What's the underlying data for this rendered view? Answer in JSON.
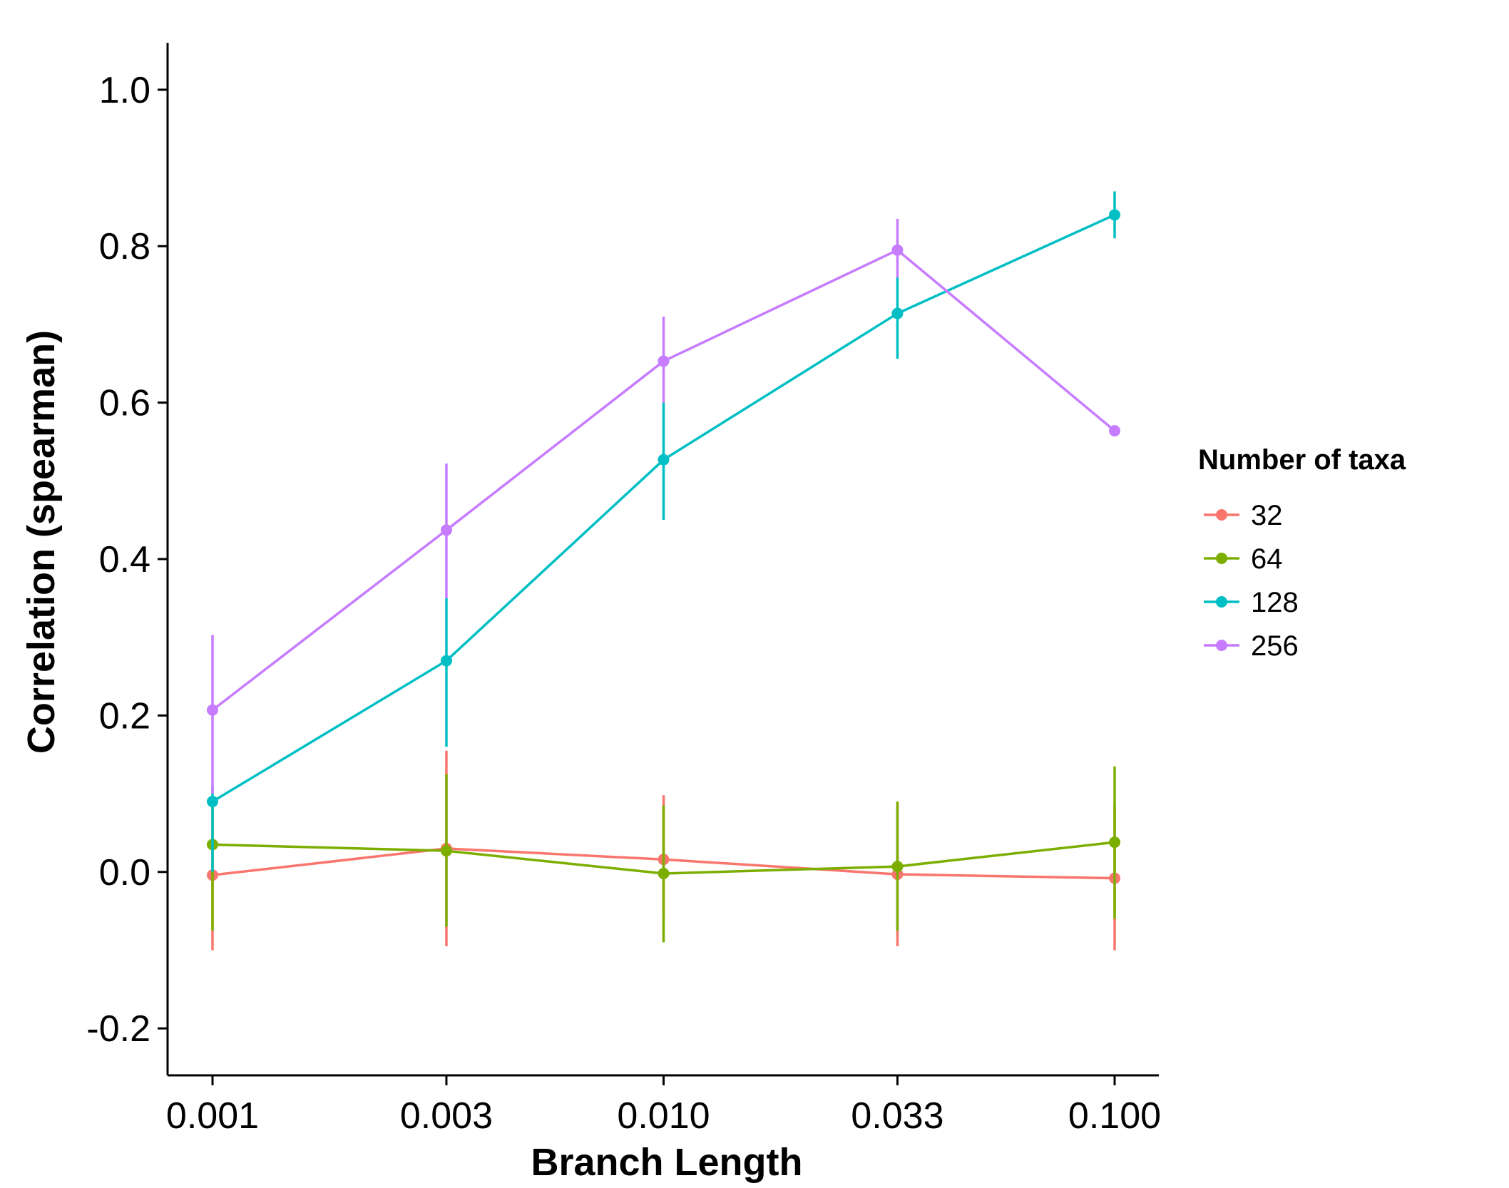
{
  "chart_data": {
    "type": "line",
    "title": "",
    "xlabel": "Branch Length",
    "ylabel": "Correlation (spearman)",
    "x_scale": "log",
    "categories": [
      "0.001",
      "0.003",
      "0.010",
      "0.033",
      "0.100"
    ],
    "x": [
      0.001,
      0.0033,
      0.01,
      0.033,
      0.1
    ],
    "ylim": [
      -0.26,
      1.06
    ],
    "yticks": [
      "-0.2",
      "0.0",
      "0.2",
      "0.4",
      "0.6",
      "0.8",
      "1.0"
    ],
    "ytick_values": [
      -0.2,
      0.0,
      0.2,
      0.4,
      0.6,
      0.8,
      1.0
    ],
    "grid": false,
    "legend_title": "Number of taxa",
    "legend_position": "right",
    "series": [
      {
        "name": "32",
        "color": "#F8766D",
        "values": [
          -0.004,
          0.03,
          0.016,
          -0.003,
          -0.008
        ],
        "err_low": [
          -0.1,
          -0.095,
          -0.06,
          -0.095,
          -0.1
        ],
        "err_high": [
          0.095,
          0.155,
          0.098,
          0.09,
          0.085
        ]
      },
      {
        "name": "64",
        "color": "#7CAE00",
        "values": [
          0.035,
          0.027,
          -0.002,
          0.007,
          0.038
        ],
        "err_low": [
          -0.075,
          -0.07,
          -0.09,
          -0.075,
          -0.06
        ],
        "err_high": [
          0.09,
          0.125,
          0.085,
          0.09,
          0.135
        ]
      },
      {
        "name": "128",
        "color": "#00BFC4",
        "values": [
          0.09,
          0.27,
          0.527,
          0.714,
          0.84
        ],
        "err_low": [
          0.0,
          0.16,
          0.45,
          0.656,
          0.81
        ],
        "err_high": [
          0.11,
          0.35,
          0.6,
          0.76,
          0.87
        ]
      },
      {
        "name": "256",
        "color": "#C77CFF",
        "values": [
          0.207,
          0.437,
          0.653,
          0.795,
          0.564
        ],
        "err_low": [
          0.1,
          0.35,
          0.6,
          0.76,
          0.564
        ],
        "err_high": [
          0.303,
          0.522,
          0.71,
          0.835,
          0.564
        ]
      }
    ]
  }
}
